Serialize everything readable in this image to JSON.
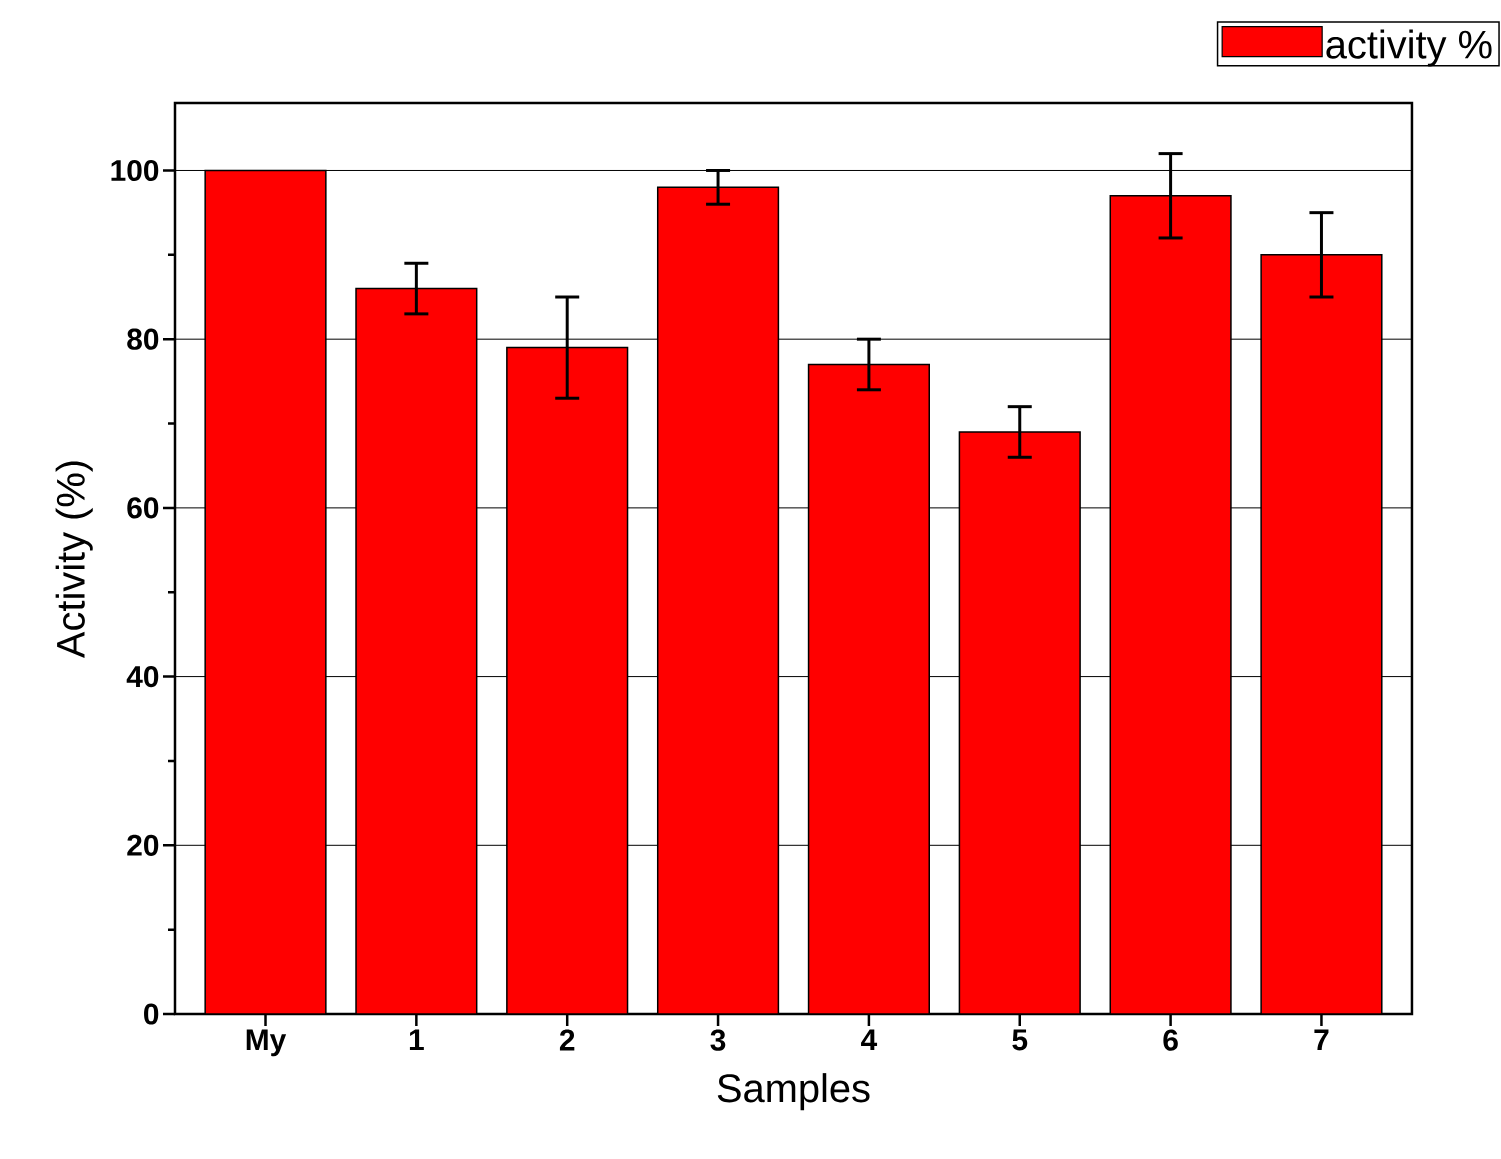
{
  "chart_data": {
    "type": "bar",
    "xlabel": "Samples",
    "ylabel": "Activity (%)",
    "categories": [
      "My",
      "1",
      "2",
      "3",
      "4",
      "5",
      "6",
      "7"
    ],
    "series": [
      {
        "name": "activity %",
        "color": "#ff0000",
        "values": [
          100,
          86,
          79,
          98,
          77,
          69,
          97,
          90
        ],
        "errors": [
          null,
          3,
          6,
          2,
          3,
          3,
          5,
          5
        ]
      }
    ],
    "ylim": [
      0,
      108
    ],
    "yticks": [
      0,
      20,
      40,
      60,
      80,
      100
    ],
    "grid": "y",
    "legend": "top right"
  }
}
